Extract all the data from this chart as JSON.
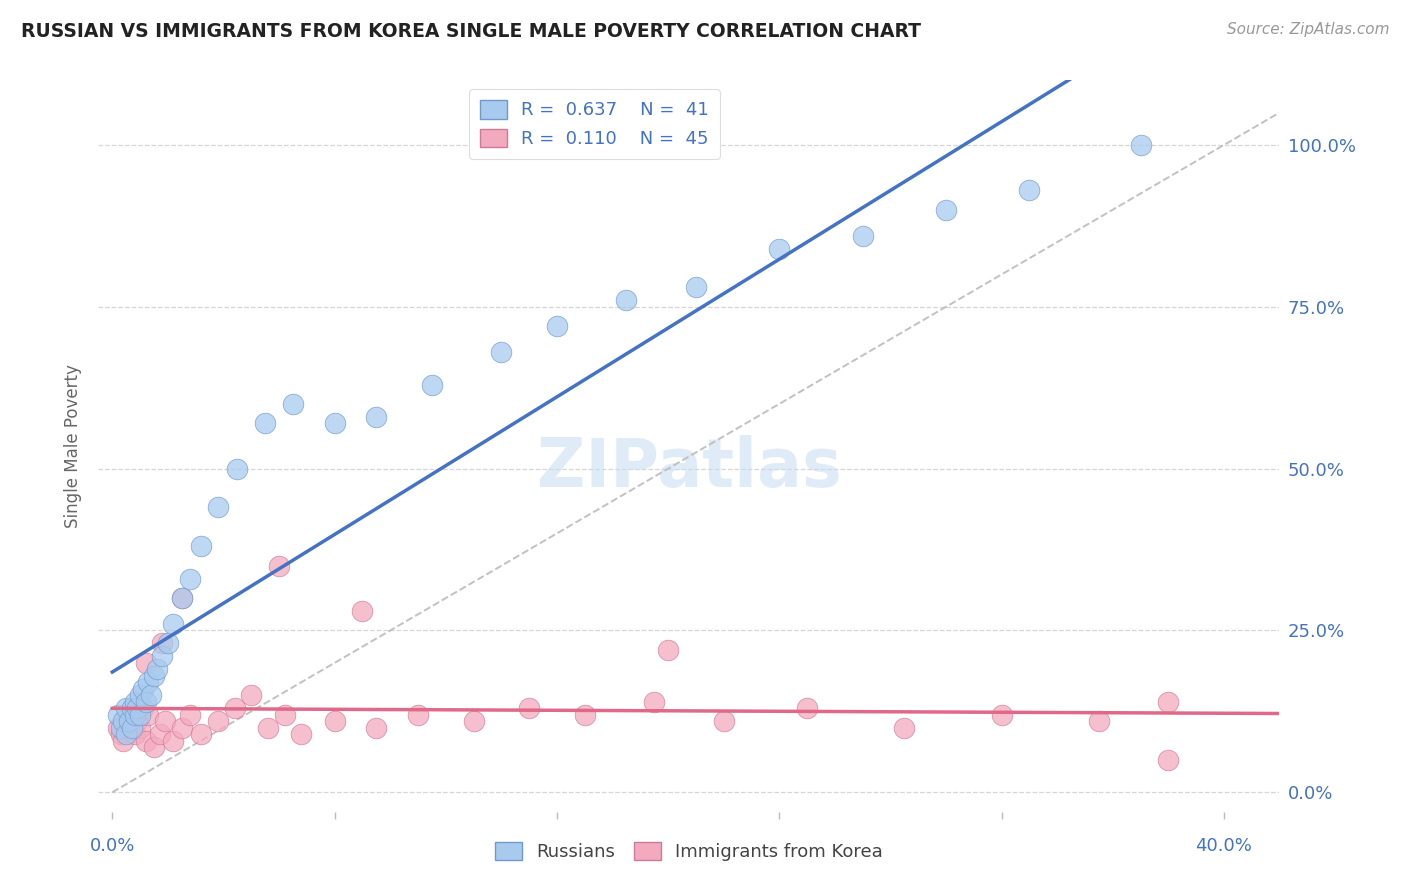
{
  "title": "RUSSIAN VS IMMIGRANTS FROM KOREA SINGLE MALE POVERTY CORRELATION CHART",
  "source": "Source: ZipAtlas.com",
  "ylabel": "Single Male Poverty",
  "ytick_labels": [
    "0.0%",
    "25.0%",
    "50.0%",
    "75.0%",
    "100.0%"
  ],
  "ytick_values": [
    0.0,
    0.25,
    0.5,
    0.75,
    1.0
  ],
  "xlim": [
    0.0,
    0.42
  ],
  "ylim": [
    -0.03,
    1.1
  ],
  "R_blue": "0.637",
  "N_blue": "41",
  "R_pink": "0.110",
  "N_pink": "45",
  "color_blue_fill": "#A8CAEE",
  "color_blue_edge": "#7099CC",
  "color_pink_fill": "#F4AABE",
  "color_pink_edge": "#D07898",
  "color_line_blue": "#4472C4",
  "color_line_pink": "#E06888",
  "color_text": "#4472C4",
  "color_grid": "#CCCCCC",
  "bg_color": "#FFFFFF",
  "watermark_color": "#C8DCF4",
  "russians_x": [
    0.002,
    0.003,
    0.004,
    0.005,
    0.005,
    0.006,
    0.007,
    0.007,
    0.008,
    0.008,
    0.009,
    0.01,
    0.01,
    0.011,
    0.012,
    0.013,
    0.014,
    0.015,
    0.016,
    0.018,
    0.02,
    0.022,
    0.025,
    0.028,
    0.032,
    0.038,
    0.045,
    0.055,
    0.065,
    0.08,
    0.095,
    0.115,
    0.14,
    0.16,
    0.185,
    0.21,
    0.24,
    0.27,
    0.3,
    0.33,
    0.37
  ],
  "russians_y": [
    0.12,
    0.1,
    0.11,
    0.09,
    0.13,
    0.11,
    0.1,
    0.13,
    0.12,
    0.14,
    0.13,
    0.15,
    0.12,
    0.16,
    0.14,
    0.17,
    0.15,
    0.18,
    0.19,
    0.21,
    0.23,
    0.26,
    0.3,
    0.33,
    0.38,
    0.44,
    0.5,
    0.57,
    0.6,
    0.57,
    0.58,
    0.63,
    0.68,
    0.72,
    0.76,
    0.78,
    0.84,
    0.86,
    0.9,
    0.93,
    1.0
  ],
  "korea_x": [
    0.002,
    0.003,
    0.004,
    0.005,
    0.006,
    0.007,
    0.008,
    0.009,
    0.01,
    0.011,
    0.012,
    0.013,
    0.015,
    0.017,
    0.019,
    0.022,
    0.025,
    0.028,
    0.032,
    0.038,
    0.044,
    0.05,
    0.056,
    0.062,
    0.068,
    0.08,
    0.095,
    0.11,
    0.13,
    0.15,
    0.17,
    0.195,
    0.22,
    0.25,
    0.285,
    0.32,
    0.355,
    0.38,
    0.012,
    0.018,
    0.025,
    0.06,
    0.09,
    0.2,
    0.38
  ],
  "korea_y": [
    0.1,
    0.09,
    0.08,
    0.11,
    0.1,
    0.12,
    0.09,
    0.11,
    0.1,
    0.13,
    0.08,
    0.12,
    0.07,
    0.09,
    0.11,
    0.08,
    0.1,
    0.12,
    0.09,
    0.11,
    0.13,
    0.15,
    0.1,
    0.12,
    0.09,
    0.11,
    0.1,
    0.12,
    0.11,
    0.13,
    0.12,
    0.14,
    0.11,
    0.13,
    0.1,
    0.12,
    0.11,
    0.05,
    0.2,
    0.23,
    0.3,
    0.35,
    0.28,
    0.22,
    0.14
  ],
  "xtick_positions": [
    0.0,
    0.08,
    0.16,
    0.24,
    0.32,
    0.4
  ]
}
